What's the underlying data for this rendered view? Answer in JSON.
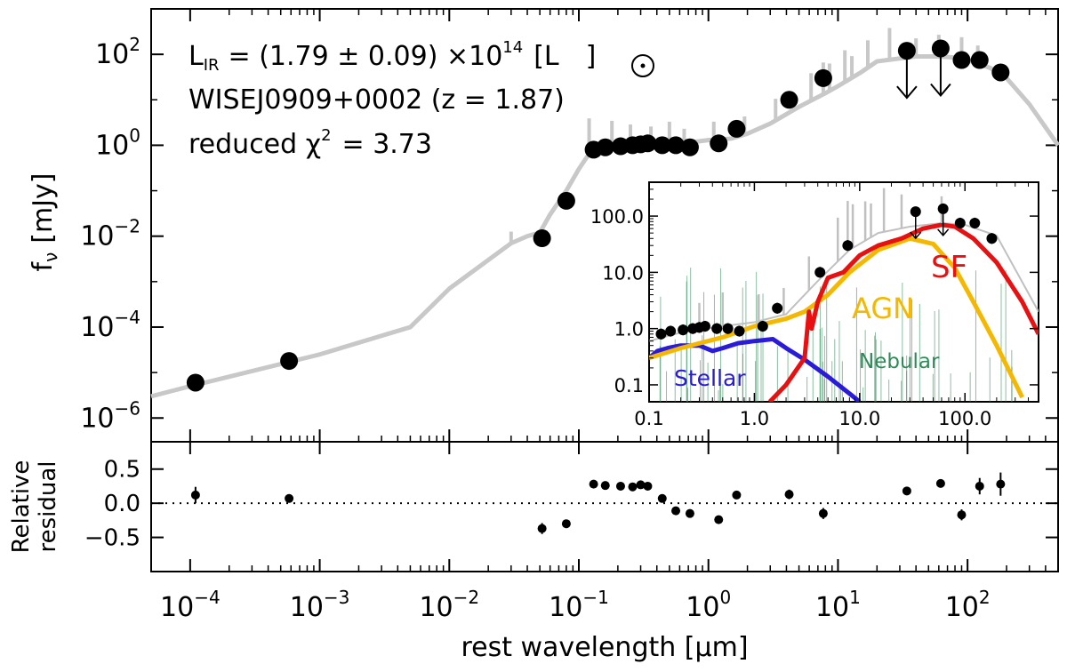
{
  "chart_data": [
    {
      "id": "main",
      "type": "scatter",
      "x_scale": "log",
      "y_scale": "log",
      "xlim": [
        5e-05,
        500
      ],
      "ylim": [
        3e-07,
        1000
      ],
      "ylabel": "f",
      "ylabel_sub": "ν",
      "ylabel_unit": "[mJy]",
      "x_ticks": [
        {
          "value": 0.0001,
          "base": "10",
          "exp": "−4"
        },
        {
          "value": 0.001,
          "base": "10",
          "exp": "−3"
        },
        {
          "value": 0.01,
          "base": "10",
          "exp": "−2"
        },
        {
          "value": 0.1,
          "base": "10",
          "exp": "−1"
        },
        {
          "value": 1,
          "base": "10",
          "exp": "0"
        },
        {
          "value": 10,
          "base": "10",
          "exp": "1"
        },
        {
          "value": 100,
          "base": "10",
          "exp": "2"
        }
      ],
      "y_ticks": [
        {
          "value": 1e-06,
          "base": "10",
          "exp": "−6"
        },
        {
          "value": 0.0001,
          "base": "10",
          "exp": "−4"
        },
        {
          "value": 0.01,
          "base": "10",
          "exp": "−2"
        },
        {
          "value": 1,
          "base": "10",
          "exp": "0"
        },
        {
          "value": 100,
          "base": "10",
          "exp": "2"
        }
      ],
      "annotations": {
        "lir_label": "L",
        "lir_sub": "IR",
        "lir_value": "= (1.79 ± 0.09) ×10",
        "lir_exp": "14",
        "lir_unit": "[L",
        "lir_unit_close": "]",
        "source": "WISEJ0909+0002 (z = 1.87)",
        "chi_label": "reduced χ",
        "chi_exp": "2",
        "chi_value": "= 3.73"
      },
      "series": [
        {
          "name": "model SED",
          "color": "#c8c8c8",
          "x": [
            5e-05,
            0.0001,
            0.001,
            0.005,
            0.01,
            0.03,
            0.04,
            0.05,
            0.06,
            0.08,
            0.1,
            0.12,
            0.15,
            0.2,
            0.3,
            0.5,
            0.8,
            1.0,
            1.5,
            2,
            3,
            5,
            8,
            10,
            15,
            20,
            40,
            60,
            80,
            100,
            150,
            200,
            300,
            500
          ],
          "y": [
            3e-06,
            5e-06,
            2.5e-05,
            0.0001,
            0.0007,
            0.007,
            0.01,
            0.012,
            0.03,
            0.1,
            0.3,
            0.65,
            0.8,
            0.9,
            1.0,
            1.1,
            1.2,
            1.3,
            1.4,
            1.8,
            3,
            7,
            14,
            20,
            40,
            70,
            90,
            90,
            85,
            75,
            50,
            30,
            8,
            1
          ]
        },
        {
          "name": "photometry",
          "color": "#000000",
          "x": [
            0.00011,
            0.00058,
            0.052,
            0.08,
            0.13,
            0.16,
            0.21,
            0.26,
            0.3,
            0.34,
            0.44,
            0.56,
            0.72,
            1.2,
            1.65,
            4.2,
            7.7,
            90,
            124,
            180
          ],
          "y": [
            6e-06,
            1.8e-05,
            0.009,
            0.06,
            0.8,
            0.9,
            0.95,
            1.0,
            1.05,
            1.1,
            1.0,
            1.0,
            0.9,
            1.1,
            2.3,
            10,
            30,
            75,
            75,
            40
          ]
        },
        {
          "name": "upper limits",
          "color": "#000000",
          "x": [
            34,
            62
          ],
          "y": [
            120,
            135
          ]
        }
      ]
    },
    {
      "id": "residual",
      "type": "scatter",
      "x_scale": "log",
      "xlim": [
        5e-05,
        500
      ],
      "ylim": [
        -1.0,
        0.9
      ],
      "ylabel": [
        "Relative",
        "residual"
      ],
      "xlabel": "rest wavelength [μm]",
      "y_ticks": [
        {
          "value": 0.5,
          "label": "0.5"
        },
        {
          "value": 0.0,
          "label": "0.0"
        },
        {
          "value": -0.5,
          "label": "−0.5"
        }
      ],
      "reference_line": 0.0,
      "series": [
        {
          "name": "residuals",
          "x": [
            0.00011,
            0.00058,
            0.052,
            0.08,
            0.13,
            0.16,
            0.21,
            0.26,
            0.3,
            0.34,
            0.44,
            0.56,
            0.72,
            1.2,
            1.65,
            4.2,
            7.7,
            34,
            62,
            90,
            124,
            180
          ],
          "y": [
            0.12,
            0.07,
            -0.37,
            -0.3,
            0.28,
            0.26,
            0.25,
            0.24,
            0.27,
            0.25,
            0.07,
            -0.11,
            -0.15,
            -0.24,
            0.12,
            0.13,
            -0.15,
            0.18,
            0.29,
            -0.17,
            0.25,
            0.28
          ],
          "err": [
            0.12,
            0.06,
            0.08,
            0.06,
            0.05,
            0.05,
            0.05,
            0.05,
            0.05,
            0.05,
            0.05,
            0.06,
            0.06,
            0.06,
            0.06,
            0.07,
            0.08,
            0.02,
            0.02,
            0.08,
            0.12,
            0.17
          ]
        }
      ]
    },
    {
      "id": "inset",
      "type": "line",
      "x_scale": "log",
      "y_scale": "log",
      "xlim": [
        0.1,
        500
      ],
      "ylim": [
        0.05,
        400
      ],
      "x_ticks": [
        {
          "value": 0.1,
          "label": "0.1"
        },
        {
          "value": 1,
          "label": "1.0"
        },
        {
          "value": 10,
          "label": "10.0"
        },
        {
          "value": 100,
          "label": "100.0"
        }
      ],
      "y_ticks": [
        {
          "value": 0.1,
          "label": "0.1"
        },
        {
          "value": 1,
          "label": "1.0"
        },
        {
          "value": 10,
          "label": "10.0"
        },
        {
          "value": 100,
          "label": "100.0"
        }
      ],
      "series": [
        {
          "name": "Nebular",
          "label": "Nebular",
          "color": "#2e8b57",
          "x": [
            0.1,
            500
          ],
          "y": [
            0.06,
            0.06
          ]
        },
        {
          "name": "total",
          "label": "",
          "color": "#c0c0c0",
          "x": [
            0.1,
            0.2,
            0.5,
            1.0,
            2,
            4,
            8,
            15,
            30,
            60,
            100,
            200,
            500
          ],
          "y": [
            0.6,
            0.85,
            1.1,
            1.3,
            1.8,
            7,
            25,
            50,
            65,
            75,
            70,
            45,
            2
          ]
        },
        {
          "name": "Stellar",
          "label": "Stellar",
          "color": "#2a1bd9",
          "x": [
            0.1,
            0.12,
            0.15,
            0.2,
            0.3,
            0.4,
            0.5,
            0.7,
            1.0,
            1.5,
            2.0,
            3.0,
            5.0,
            8.0,
            10.0
          ],
          "y": [
            0.3,
            0.4,
            0.45,
            0.5,
            0.5,
            0.4,
            0.45,
            0.55,
            0.6,
            0.65,
            0.45,
            0.28,
            0.14,
            0.07,
            0.05
          ]
        },
        {
          "name": "AGN",
          "label": "AGN",
          "color": "#f5b800",
          "x": [
            0.1,
            0.2,
            0.5,
            1.0,
            2.0,
            3.0,
            5.0,
            8.0,
            15,
            30,
            50,
            80,
            120,
            200,
            350
          ],
          "y": [
            0.3,
            0.45,
            0.7,
            1.1,
            1.5,
            2.0,
            4.0,
            10,
            25,
            40,
            32,
            12,
            3.0,
            0.5,
            0.06
          ]
        },
        {
          "name": "SF",
          "label": "SF",
          "color": "#e81010",
          "x": [
            1.4,
            2.0,
            3.0,
            3.3,
            3.5,
            4.0,
            5.0,
            7.0,
            10,
            15,
            25,
            40,
            60,
            80,
            120,
            200,
            350,
            500
          ],
          "y": [
            0.05,
            0.1,
            0.3,
            2.0,
            1.0,
            3.0,
            8.0,
            10,
            20,
            30,
            40,
            60,
            70,
            65,
            40,
            15,
            3.0,
            0.8
          ]
        },
        {
          "name": "photometry",
          "label": "",
          "color": "#000000",
          "x": [
            0.13,
            0.16,
            0.21,
            0.26,
            0.3,
            0.34,
            0.44,
            0.56,
            0.72,
            1.2,
            1.65,
            4.2,
            7.7,
            90,
            124,
            180
          ],
          "y": [
            0.8,
            0.9,
            0.95,
            1.0,
            1.05,
            1.1,
            1.0,
            1.0,
            0.9,
            1.1,
            2.3,
            10,
            30,
            75,
            75,
            40
          ]
        },
        {
          "name": "upper limits",
          "label": "",
          "color": "#000000",
          "x": [
            34,
            62
          ],
          "y": [
            120,
            135
          ]
        }
      ]
    }
  ]
}
